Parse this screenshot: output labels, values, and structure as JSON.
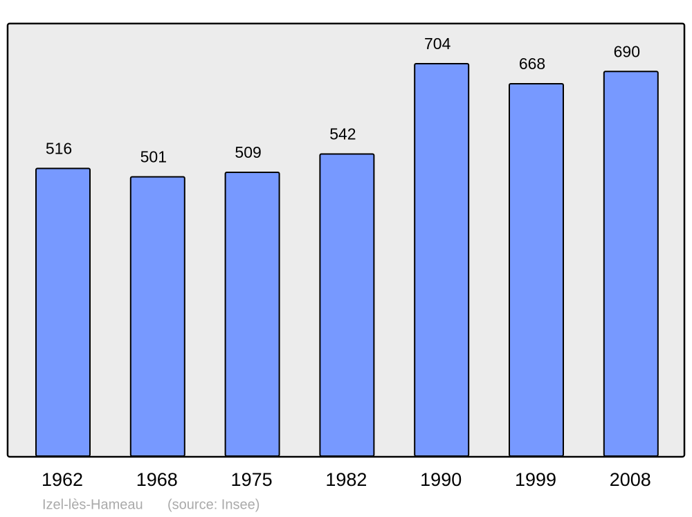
{
  "chart_data": {
    "type": "bar",
    "categories": [
      "1962",
      "1968",
      "1975",
      "1982",
      "1990",
      "1999",
      "2008"
    ],
    "values": [
      516,
      501,
      509,
      542,
      704,
      668,
      690
    ],
    "color": "#7799ff",
    "place": "Izel-lès-Hameau",
    "source": "(source: Insee)"
  }
}
